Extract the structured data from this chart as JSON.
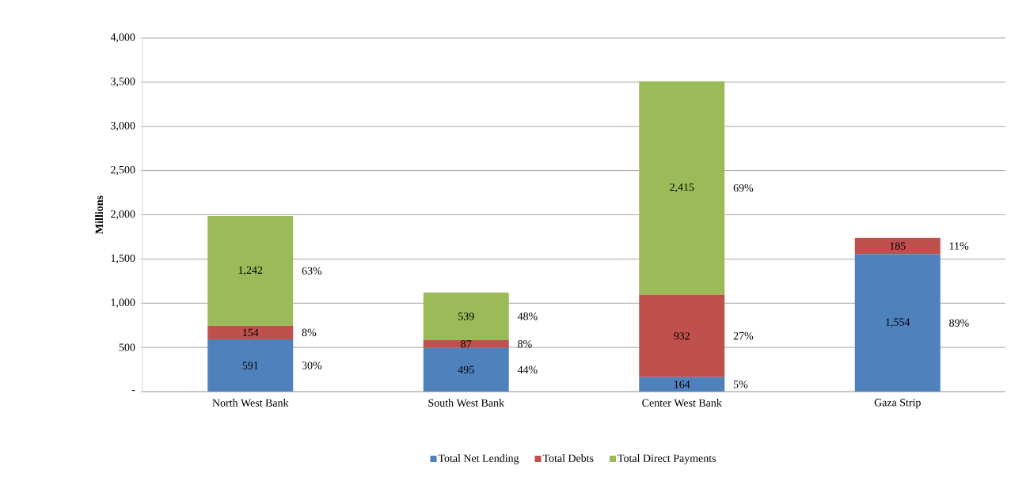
{
  "chart_data": {
    "type": "bar",
    "stacked": true,
    "ylabel": "Millions",
    "categories": [
      "North West Bank",
      "South West Bank",
      "Center West Bank",
      "Gaza Strip"
    ],
    "series": [
      {
        "name": "Total Net Lending",
        "color": "#4f81bd",
        "values": [
          591,
          495,
          164,
          1554
        ],
        "value_labels": [
          "591",
          "495",
          "164",
          "1,554"
        ]
      },
      {
        "name": "Total Debts",
        "color": "#c0504d",
        "values": [
          154,
          87,
          932,
          185
        ],
        "value_labels": [
          "154",
          "87",
          "932",
          "185"
        ]
      },
      {
        "name": "Total Direct Payments",
        "color": "#9bbb59",
        "values": [
          1242,
          539,
          2415,
          null
        ],
        "value_labels": [
          "1,242",
          "539",
          "2,415",
          null
        ]
      }
    ],
    "ylim": [
      0,
      4000
    ],
    "yticks": [
      {
        "value": 0,
        "label": "-"
      },
      {
        "value": 500,
        "label": "500"
      },
      {
        "value": 1000,
        "label": "1,000"
      },
      {
        "value": 1500,
        "label": "1,500"
      },
      {
        "value": 2000,
        "label": "2,000"
      },
      {
        "value": 2500,
        "label": "2,500"
      },
      {
        "value": 3000,
        "label": "3,000"
      },
      {
        "value": 3500,
        "label": "3,500"
      },
      {
        "value": 4000,
        "label": "4,000"
      }
    ],
    "grid": "y",
    "legend": "bottom",
    "annotations": [
      "30%",
      "8%",
      "63%",
      "44%",
      "8%",
      "48%",
      "5%",
      "27%",
      "69%",
      "89%",
      "11%"
    ]
  }
}
